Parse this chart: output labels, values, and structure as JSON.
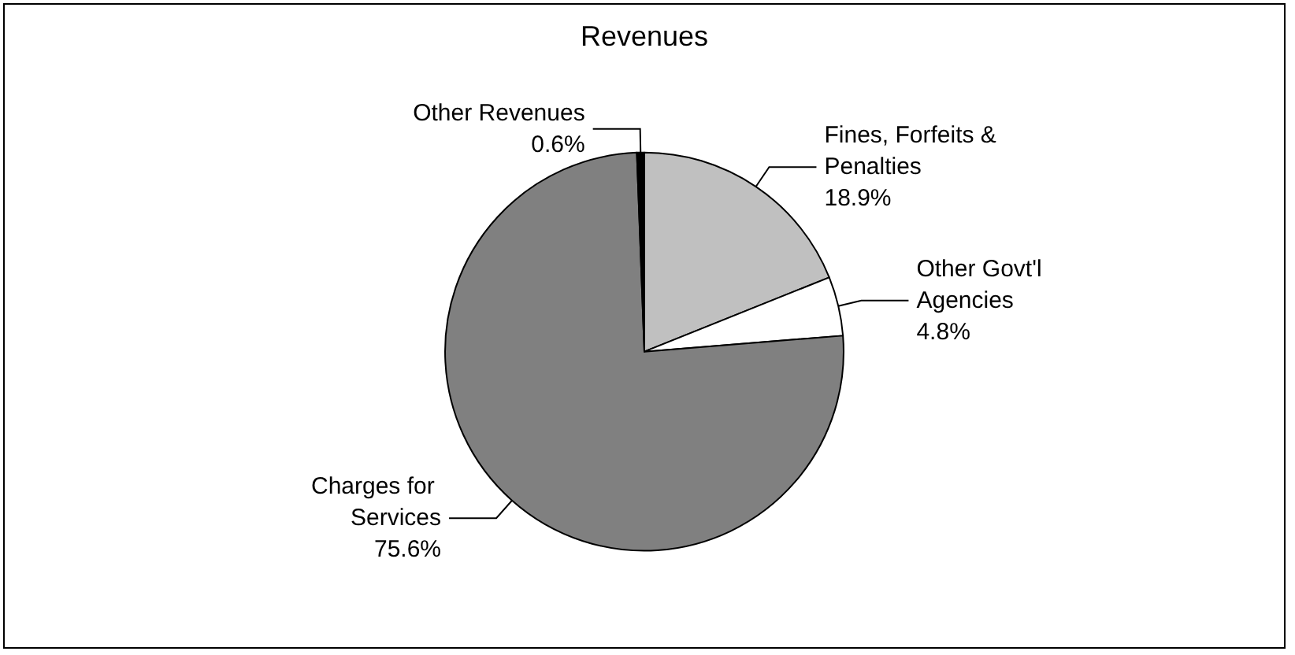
{
  "chart_data": {
    "type": "pie",
    "title": "Revenues",
    "categories": [
      "Fines, Forfeits & Penalties",
      "Other Govt'l Agencies",
      "Charges for Services",
      "Other Revenues"
    ],
    "values": [
      18.9,
      4.8,
      75.6,
      0.6
    ],
    "colors": [
      "#c0c0c0",
      "#ffffff",
      "#808080",
      "#000000"
    ],
    "value_labels": [
      "18.9%",
      "4.8%",
      "75.6%",
      "0.6%"
    ]
  }
}
